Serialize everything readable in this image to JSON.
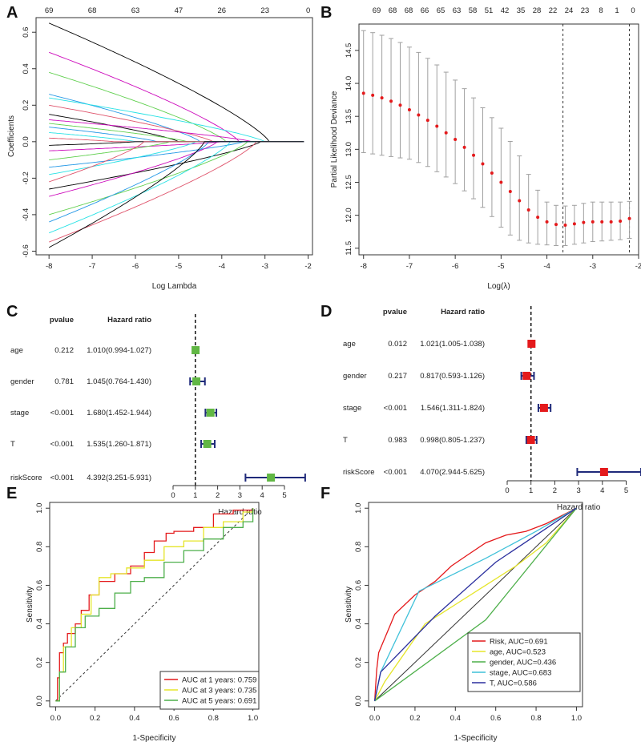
{
  "chart_data": [
    {
      "panel": "A",
      "type": "line",
      "xlabel": "Log Lambda",
      "ylabel": "Coefficients",
      "xlim": [
        -8,
        -2
      ],
      "ylim": [
        -0.62,
        0.68
      ],
      "xticks": [
        "-8",
        "-7",
        "-6",
        "-5",
        "-4",
        "-3",
        "-2"
      ],
      "yticks": [
        "-0.6",
        "-0.4",
        "-0.2",
        "0.0",
        "0.2",
        "0.4",
        "0.6"
      ],
      "top_ticks": [
        "69",
        "68",
        "63",
        "47",
        "26",
        "23",
        "0"
      ],
      "top_tick_x": [
        -8,
        -7,
        -6,
        -5,
        -4,
        -3,
        -2
      ],
      "palette": [
        "#000000",
        "#CD0BBC",
        "#61D04F",
        "#2297E6",
        "#28E2E5",
        "#DF536B"
      ],
      "paths": [
        {
          "start": 0.65,
          "zero_at": -2.9
        },
        {
          "start": 0.49,
          "zero_at": -3.6
        },
        {
          "start": 0.38,
          "zero_at": -3.9
        },
        {
          "start": 0.26,
          "zero_at": -4.5
        },
        {
          "start": 0.24,
          "zero_at": -3.0
        },
        {
          "start": 0.2,
          "zero_at": -4.2
        },
        {
          "start": 0.15,
          "zero_at": -5.0
        },
        {
          "start": 0.12,
          "zero_at": -3.3
        },
        {
          "start": 0.1,
          "zero_at": -4.8
        },
        {
          "start": 0.08,
          "zero_at": -5.5
        },
        {
          "start": 0.05,
          "zero_at": -6.0
        },
        {
          "start": 0.02,
          "zero_at": -6.5
        },
        {
          "start": -0.02,
          "zero_at": -6.0
        },
        {
          "start": -0.05,
          "zero_at": -4.0
        },
        {
          "start": -0.1,
          "zero_at": -5.2
        },
        {
          "start": -0.14,
          "zero_at": -3.5
        },
        {
          "start": -0.18,
          "zero_at": -4.6
        },
        {
          "start": -0.22,
          "zero_at": -5.8
        },
        {
          "start": -0.26,
          "zero_at": -3.1
        },
        {
          "start": -0.3,
          "zero_at": -4.1
        },
        {
          "start": -0.4,
          "zero_at": -3.4
        },
        {
          "start": -0.44,
          "zero_at": -4.3
        },
        {
          "start": -0.5,
          "zero_at": -3.8
        },
        {
          "start": -0.55,
          "zero_at": -3.2
        },
        {
          "start": -0.58,
          "zero_at": -4.4
        }
      ]
    },
    {
      "panel": "B",
      "type": "scatter",
      "xlabel": "Log(λ)",
      "ylabel": "Partial Likelihood Deviance",
      "xlim": [
        -8.1,
        -2.0
      ],
      "ylim": [
        11.4,
        14.9
      ],
      "xticks": [
        "-8",
        "-7",
        "-6",
        "-5",
        "-4",
        "-3",
        "-2"
      ],
      "yticks": [
        "11.5",
        "12.0",
        "12.5",
        "13.0",
        "13.5",
        "14.0",
        "14.5"
      ],
      "top_ticks": [
        "69",
        "68",
        "68",
        "66",
        "65",
        "63",
        "58",
        "51",
        "42",
        "35",
        "28",
        "22",
        "24",
        "23",
        "8",
        "1",
        "0"
      ],
      "vlines": [
        -3.65,
        -2.2
      ],
      "point_color": "#E41A1C",
      "errorbar_color": "#A0A0A0",
      "x": [
        -8,
        -7.8,
        -7.6,
        -7.4,
        -7.2,
        -7,
        -6.8,
        -6.6,
        -6.4,
        -6.2,
        -6,
        -5.8,
        -5.6,
        -5.4,
        -5.2,
        -5,
        -4.8,
        -4.6,
        -4.4,
        -4.2,
        -4,
        -3.8,
        -3.6,
        -3.4,
        -3.2,
        -3,
        -2.8,
        -2.6,
        -2.4,
        -2.2
      ],
      "mean": [
        13.85,
        13.82,
        13.78,
        13.73,
        13.67,
        13.6,
        13.52,
        13.44,
        13.35,
        13.25,
        13.15,
        13.03,
        12.91,
        12.78,
        12.64,
        12.5,
        12.36,
        12.22,
        12.08,
        11.97,
        11.9,
        11.86,
        11.85,
        11.87,
        11.89,
        11.9,
        11.9,
        11.9,
        11.91,
        11.95
      ],
      "upper": [
        14.8,
        14.77,
        14.73,
        14.68,
        14.62,
        14.55,
        14.47,
        14.38,
        14.28,
        14.17,
        14.05,
        13.92,
        13.78,
        13.63,
        13.48,
        13.32,
        13.12,
        12.9,
        12.62,
        12.38,
        12.2,
        12.15,
        12.14,
        12.15,
        12.18,
        12.2,
        12.2,
        12.2,
        12.2,
        12.21
      ],
      "lower": [
        12.95,
        12.93,
        12.91,
        12.89,
        12.87,
        12.85,
        12.8,
        12.74,
        12.66,
        12.58,
        12.48,
        12.37,
        12.25,
        12.12,
        11.98,
        11.82,
        11.7,
        11.62,
        11.58,
        11.56,
        11.55,
        11.54,
        11.54,
        11.56,
        11.58,
        11.6,
        11.61,
        11.62,
        11.63,
        11.65
      ]
    },
    {
      "panel": "C",
      "type": "table",
      "header": {
        "pvalue": "pvalue",
        "hr": "Hazard ratio"
      },
      "xlabel": "Hazard ratio",
      "xticks": [
        "0",
        "1",
        "2",
        "3",
        "4",
        "5"
      ],
      "marker_color": "#61B744",
      "ci_color": "#1F2A7A",
      "rows": [
        {
          "label": "age",
          "pvalue": "0.212",
          "hr_text": "1.010(0.994-1.027)",
          "hr": 1.01,
          "lo": 0.994,
          "hi": 1.027
        },
        {
          "label": "gender",
          "pvalue": "0.781",
          "hr_text": "1.045(0.764-1.430)",
          "hr": 1.045,
          "lo": 0.764,
          "hi": 1.43
        },
        {
          "label": "stage",
          "pvalue": "<0.001",
          "hr_text": "1.680(1.452-1.944)",
          "hr": 1.68,
          "lo": 1.452,
          "hi": 1.944
        },
        {
          "label": "T",
          "pvalue": "<0.001",
          "hr_text": "1.535(1.260-1.871)",
          "hr": 1.535,
          "lo": 1.26,
          "hi": 1.871
        },
        {
          "label": "riskScore",
          "pvalue": "<0.001",
          "hr_text": "4.392(3.251-5.931)",
          "hr": 4.392,
          "lo": 3.251,
          "hi": 5.931
        }
      ]
    },
    {
      "panel": "D",
      "type": "table",
      "header": {
        "pvalue": "pvalue",
        "hr": "Hazard ratio"
      },
      "xlabel": "Hazard ratio",
      "xticks": [
        "0",
        "1",
        "2",
        "3",
        "4",
        "5"
      ],
      "marker_color": "#E41A1C",
      "ci_color": "#1F2A7A",
      "rows": [
        {
          "label": "age",
          "pvalue": "0.012",
          "hr_text": "1.021(1.005-1.038)",
          "hr": 1.021,
          "lo": 1.005,
          "hi": 1.038
        },
        {
          "label": "gender",
          "pvalue": "0.217",
          "hr_text": "0.817(0.593-1.126)",
          "hr": 0.817,
          "lo": 0.593,
          "hi": 1.126
        },
        {
          "label": "stage",
          "pvalue": "<0.001",
          "hr_text": "1.546(1.311-1.824)",
          "hr": 1.546,
          "lo": 1.311,
          "hi": 1.824
        },
        {
          "label": "T",
          "pvalue": "0.983",
          "hr_text": "0.998(0.805-1.237)",
          "hr": 0.998,
          "lo": 0.805,
          "hi": 1.237
        },
        {
          "label": "riskScore",
          "pvalue": "<0.001",
          "hr_text": "4.070(2.944-5.625)",
          "hr": 4.07,
          "lo": 2.944,
          "hi": 5.625
        }
      ]
    },
    {
      "panel": "E",
      "type": "line",
      "xlabel": "1-Specificity",
      "ylabel": "Sensitivity",
      "xlim": [
        0,
        1
      ],
      "ylim": [
        0,
        1
      ],
      "xticks": [
        "0.0",
        "0.2",
        "0.4",
        "0.6",
        "0.8",
        "1.0"
      ],
      "yticks": [
        "0.0",
        "0.2",
        "0.4",
        "0.6",
        "0.8",
        "1.0"
      ],
      "legend": "bottom-right",
      "series": [
        {
          "name": "AUC at 1 years: 0.759",
          "color": "#E41A1C",
          "x": [
            0,
            0.01,
            0.02,
            0.04,
            0.06,
            0.1,
            0.13,
            0.17,
            0.22,
            0.3,
            0.38,
            0.45,
            0.5,
            0.56,
            0.6,
            0.7,
            0.8,
            0.9,
            1
          ],
          "y": [
            0,
            0.12,
            0.25,
            0.3,
            0.35,
            0.4,
            0.47,
            0.55,
            0.62,
            0.66,
            0.7,
            0.77,
            0.83,
            0.87,
            0.88,
            0.9,
            0.97,
            0.99,
            1
          ]
        },
        {
          "name": "AUC at 3 years: 0.735",
          "color": "#E5E52A",
          "x": [
            0,
            0.02,
            0.04,
            0.08,
            0.13,
            0.18,
            0.22,
            0.28,
            0.36,
            0.45,
            0.55,
            0.65,
            0.75,
            0.85,
            0.95,
            1
          ],
          "y": [
            0,
            0.15,
            0.28,
            0.38,
            0.45,
            0.55,
            0.64,
            0.66,
            0.69,
            0.73,
            0.8,
            0.83,
            0.9,
            0.93,
            0.98,
            1
          ]
        },
        {
          "name": "AUC at 5 years: 0.691",
          "color": "#4DAF4A",
          "x": [
            0,
            0.02,
            0.05,
            0.1,
            0.15,
            0.22,
            0.3,
            0.38,
            0.45,
            0.55,
            0.65,
            0.75,
            0.85,
            0.95,
            1
          ],
          "y": [
            0,
            0.15,
            0.28,
            0.38,
            0.44,
            0.48,
            0.56,
            0.62,
            0.64,
            0.72,
            0.78,
            0.84,
            0.9,
            0.93,
            1
          ]
        }
      ]
    },
    {
      "panel": "F",
      "type": "line",
      "xlabel": "1-Specificity",
      "ylabel": "Sensitivity",
      "xlim": [
        0,
        1
      ],
      "ylim": [
        0,
        1
      ],
      "xticks": [
        "0.0",
        "0.2",
        "0.4",
        "0.6",
        "0.8",
        "1.0"
      ],
      "yticks": [
        "0.0",
        "0.2",
        "0.4",
        "0.6",
        "0.8",
        "1.0"
      ],
      "legend": "bottom-right",
      "series": [
        {
          "name": "Risk, AUC=0.691",
          "color": "#E41A1C",
          "x": [
            0,
            0.01,
            0.02,
            0.04,
            0.08,
            0.1,
            0.15,
            0.2,
            0.3,
            0.38,
            0.45,
            0.55,
            0.65,
            0.75,
            0.85,
            1
          ],
          "y": [
            0,
            0.16,
            0.25,
            0.3,
            0.4,
            0.45,
            0.5,
            0.55,
            0.62,
            0.7,
            0.75,
            0.82,
            0.86,
            0.88,
            0.92,
            1
          ]
        },
        {
          "name": "age, AUC=0.523",
          "color": "#E5E52A",
          "x": [
            0,
            0.05,
            0.15,
            0.25,
            0.4,
            0.55,
            0.7,
            0.85,
            1
          ],
          "y": [
            0,
            0.1,
            0.25,
            0.4,
            0.5,
            0.6,
            0.7,
            0.82,
            1
          ]
        },
        {
          "name": "gender, AUC=0.436",
          "color": "#4DAF4A",
          "x": [
            0,
            0.55,
            1
          ],
          "y": [
            0,
            0.42,
            1
          ]
        },
        {
          "name": "stage, AUC=0.683",
          "color": "#3FC1D9",
          "x": [
            0,
            0.03,
            0.22,
            0.55,
            0.8,
            1
          ],
          "y": [
            0,
            0.15,
            0.57,
            0.74,
            0.88,
            1
          ]
        },
        {
          "name": "T, AUC=0.586",
          "color": "#2B2F9E",
          "x": [
            0,
            0.03,
            0.3,
            0.6,
            1
          ],
          "y": [
            0,
            0.15,
            0.44,
            0.72,
            1
          ]
        }
      ]
    }
  ],
  "panel_labels": [
    "A",
    "B",
    "C",
    "D",
    "E",
    "F"
  ]
}
